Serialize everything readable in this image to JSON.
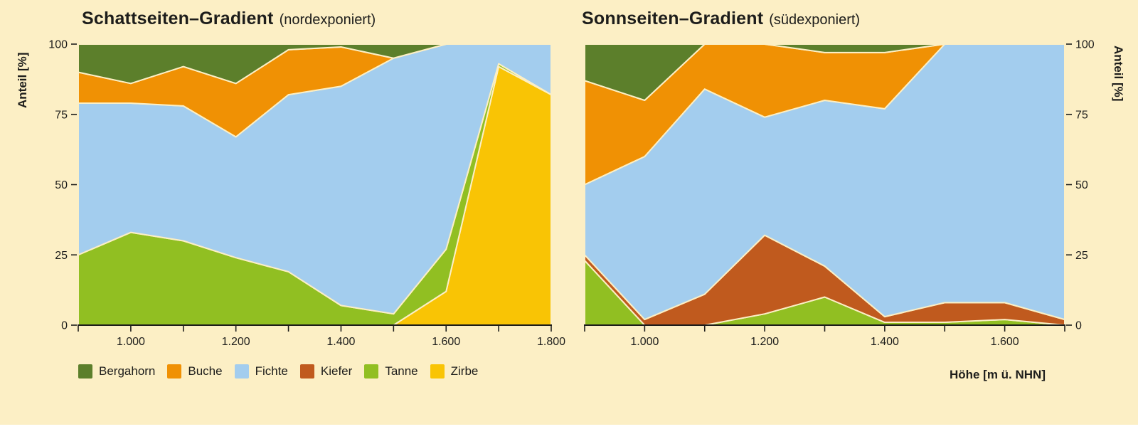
{
  "page": {
    "background_color": "#fcefc5",
    "text_color": "#1d1d1b",
    "bottom_strip_color": "#ffffff",
    "x_axis_title": "Höhe [m ü. NHN]"
  },
  "legend": {
    "items": [
      {
        "label": "Bergahorn",
        "color": "#5c7f2b"
      },
      {
        "label": "Buche",
        "color": "#f09104"
      },
      {
        "label": "Fichte",
        "color": "#a3cdee"
      },
      {
        "label": "Kiefer",
        "color": "#c05a1e"
      },
      {
        "label": "Tanne",
        "color": "#91bf22"
      },
      {
        "label": "Zirbe",
        "color": "#f9c405"
      }
    ]
  },
  "chart_data": [
    {
      "type": "area",
      "stacked": true,
      "title": "Schattseiten–Gradient",
      "title_suffix": "(nordexponiert)",
      "ylabel": "Anteil [%]",
      "y_axis_side": "left",
      "ylim": [
        0,
        100
      ],
      "y_ticks": [
        0,
        25,
        50,
        75,
        100
      ],
      "x": [
        900,
        1000,
        1100,
        1200,
        1300,
        1400,
        1500,
        1600,
        1700,
        1800
      ],
      "x_ticks": [
        900,
        1000,
        1100,
        1200,
        1300,
        1400,
        1500,
        1600,
        1700,
        1800
      ],
      "x_major_ticks": [
        {
          "value": 1000,
          "label": "1.000"
        },
        {
          "value": 1200,
          "label": "1.200"
        },
        {
          "value": 1400,
          "label": "1.400"
        },
        {
          "value": 1600,
          "label": "1.600"
        },
        {
          "value": 1800,
          "label": "1.800"
        }
      ],
      "series": [
        {
          "name": "Zirbe",
          "color": "#f9c405",
          "values": [
            0,
            0,
            0,
            0,
            0,
            0,
            0,
            12,
            92,
            82
          ]
        },
        {
          "name": "Tanne",
          "color": "#91bf22",
          "values": [
            25,
            33,
            30,
            24,
            19,
            7,
            4,
            15,
            1,
            0
          ]
        },
        {
          "name": "Kiefer",
          "color": "#c05a1e",
          "values": [
            0,
            0,
            0,
            0,
            0,
            0,
            0,
            0,
            0,
            0
          ]
        },
        {
          "name": "Fichte",
          "color": "#a3cdee",
          "values": [
            54,
            46,
            48,
            43,
            63,
            78,
            91,
            73,
            7,
            18
          ]
        },
        {
          "name": "Buche",
          "color": "#f09104",
          "values": [
            11,
            7,
            14,
            19,
            16,
            14,
            0,
            0,
            0,
            0
          ]
        },
        {
          "name": "Bergahorn",
          "color": "#5c7f2b",
          "values": [
            10,
            14,
            8,
            14,
            2,
            1,
            5,
            0,
            0,
            0
          ]
        }
      ]
    },
    {
      "type": "area",
      "stacked": true,
      "title": "Sonnseiten–Gradient",
      "title_suffix": "(südexponiert)",
      "ylabel": "Anteil [%]",
      "y_axis_side": "right",
      "ylim": [
        0,
        100
      ],
      "y_ticks": [
        0,
        25,
        50,
        75,
        100
      ],
      "x": [
        900,
        1000,
        1100,
        1200,
        1300,
        1400,
        1500,
        1600,
        1700
      ],
      "x_ticks": [
        900,
        1000,
        1100,
        1200,
        1300,
        1400,
        1500,
        1600,
        1700
      ],
      "x_major_ticks": [
        {
          "value": 1000,
          "label": "1.000"
        },
        {
          "value": 1200,
          "label": "1.200"
        },
        {
          "value": 1400,
          "label": "1.400"
        },
        {
          "value": 1600,
          "label": "1.600"
        }
      ],
      "series": [
        {
          "name": "Zirbe",
          "color": "#f9c405",
          "values": [
            0,
            0,
            0,
            0,
            0,
            0,
            0,
            0,
            0
          ]
        },
        {
          "name": "Tanne",
          "color": "#91bf22",
          "values": [
            23,
            0,
            0,
            4,
            10,
            1,
            1,
            2,
            0
          ]
        },
        {
          "name": "Kiefer",
          "color": "#c05a1e",
          "values": [
            2,
            2,
            11,
            28,
            11,
            2,
            7,
            6,
            2
          ]
        },
        {
          "name": "Fichte",
          "color": "#a3cdee",
          "values": [
            25,
            58,
            73,
            42,
            59,
            74,
            92,
            92,
            98
          ]
        },
        {
          "name": "Buche",
          "color": "#f09104",
          "values": [
            37,
            20,
            16,
            26,
            17,
            20,
            0,
            0,
            0
          ]
        },
        {
          "name": "Bergahorn",
          "color": "#5c7f2b",
          "values": [
            13,
            20,
            0,
            0,
            3,
            3,
            0,
            0,
            0
          ]
        }
      ]
    }
  ]
}
